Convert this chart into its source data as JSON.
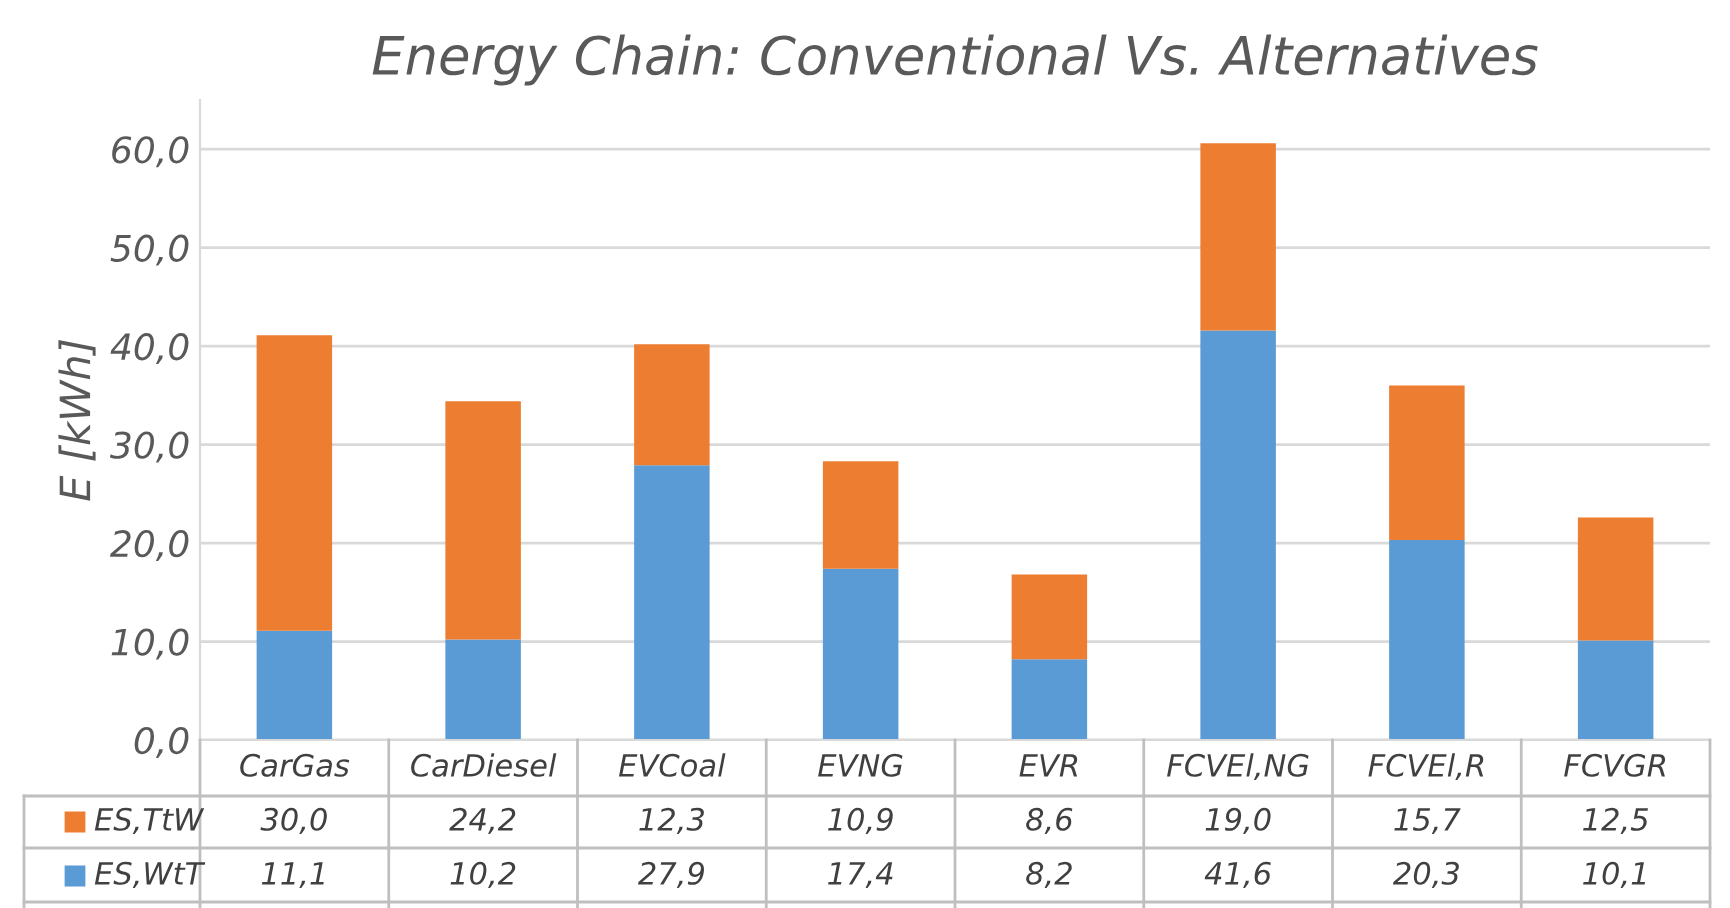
{
  "chart_data": {
    "type": "bar",
    "stacked": true,
    "title": "Energy Chain: Conventional Vs. Alternatives",
    "ylabel": "E [kWh]",
    "categories": [
      "CarGas",
      "CarDiesel",
      "EVCoal",
      "EVNG",
      "EVR",
      "FCVEl,NG",
      "FCVEl,R",
      "FCVGR"
    ],
    "series": [
      {
        "name": "ES,WtT",
        "color": "#5b9bd5",
        "values": [
          11.1,
          10.2,
          27.9,
          17.4,
          8.2,
          41.6,
          20.3,
          10.1
        ],
        "value_labels": [
          "11,1",
          "10,2",
          "27,9",
          "17,4",
          "8,2",
          "41,6",
          "20,3",
          "10,1"
        ]
      },
      {
        "name": "ES,TtW",
        "color": "#ed7d31",
        "values": [
          30.0,
          24.2,
          12.3,
          10.9,
          8.6,
          19.0,
          15.7,
          12.5
        ],
        "value_labels": [
          "30,0",
          "24,2",
          "12,3",
          "10,9",
          "8,6",
          "19,0",
          "15,7",
          "12,5"
        ]
      }
    ],
    "ylim": [
      0,
      65
    ],
    "yticks": [
      {
        "value": 0,
        "label": "0,0"
      },
      {
        "value": 10,
        "label": "10,0"
      },
      {
        "value": 20,
        "label": "20,0"
      },
      {
        "value": 30,
        "label": "30,0"
      },
      {
        "value": 40,
        "label": "40,0"
      },
      {
        "value": 50,
        "label": "50,0"
      },
      {
        "value": 60,
        "label": "60,0"
      }
    ],
    "grid": "y",
    "legend": "bottom left"
  }
}
